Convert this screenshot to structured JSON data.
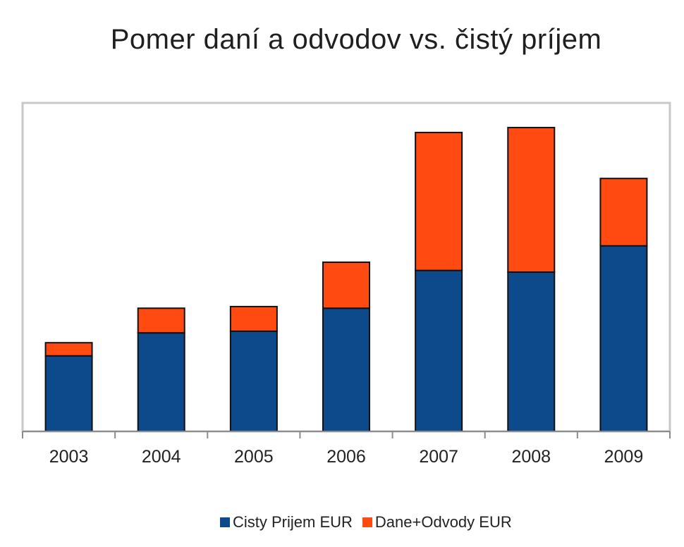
{
  "chart_data": {
    "type": "bar",
    "stacked": true,
    "title": "Pomer daní a odvodov vs. čistý príjem",
    "xlabel": "",
    "ylabel": "",
    "categories": [
      "2003",
      "2004",
      "2005",
      "2006",
      "2007",
      "2008",
      "2009"
    ],
    "series": [
      {
        "name": "Cisty Prijem EUR",
        "color": "#0d4a8c",
        "values": [
          230,
          300,
          305,
          375,
          490,
          485,
          565
        ]
      },
      {
        "name": "Dane+Odvody EUR",
        "color": "#ff4a12",
        "values": [
          40,
          75,
          75,
          140,
          420,
          440,
          205
        ]
      }
    ],
    "ylim": [
      0,
      1000
    ],
    "grid": false,
    "legend_position": "bottom"
  }
}
